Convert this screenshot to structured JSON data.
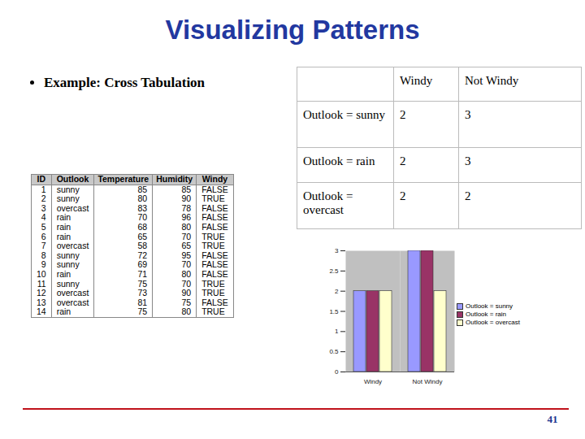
{
  "header": {
    "title": "Visualizing Patterns"
  },
  "bullet": "Example: Cross Tabulation",
  "data_table": {
    "columns": [
      "ID",
      "Outlook",
      "Temperature",
      "Humidity",
      "Windy"
    ],
    "rows": [
      [
        1,
        "sunny",
        85,
        85,
        "FALSE"
      ],
      [
        2,
        "sunny",
        80,
        90,
        "TRUE"
      ],
      [
        3,
        "overcast",
        83,
        78,
        "FALSE"
      ],
      [
        4,
        "rain",
        70,
        96,
        "FALSE"
      ],
      [
        5,
        "rain",
        68,
        80,
        "FALSE"
      ],
      [
        6,
        "rain",
        65,
        70,
        "TRUE"
      ],
      [
        7,
        "overcast",
        58,
        65,
        "TRUE"
      ],
      [
        8,
        "sunny",
        72,
        95,
        "FALSE"
      ],
      [
        9,
        "sunny",
        69,
        70,
        "FALSE"
      ],
      [
        10,
        "rain",
        71,
        80,
        "FALSE"
      ],
      [
        11,
        "sunny",
        75,
        70,
        "TRUE"
      ],
      [
        12,
        "overcast",
        73,
        90,
        "TRUE"
      ],
      [
        13,
        "overcast",
        81,
        75,
        "FALSE"
      ],
      [
        14,
        "rain",
        75,
        80,
        "TRUE"
      ]
    ]
  },
  "cross_table": {
    "columns": [
      null,
      "Windy",
      "Not Windy"
    ],
    "rows": [
      [
        "Outlook = sunny",
        2,
        3
      ],
      [
        "Outlook = rain",
        2,
        3
      ],
      [
        "Outlook = overcast",
        2,
        2
      ]
    ]
  },
  "chart_data": {
    "type": "bar",
    "categories": [
      "Windy",
      "Not Windy"
    ],
    "series": [
      {
        "name": "Outlook = sunny",
        "color": "#9999ff",
        "values": [
          2,
          3
        ]
      },
      {
        "name": "Outlook = rain",
        "color": "#993366",
        "values": [
          2,
          3
        ]
      },
      {
        "name": "Outlook = overcast",
        "color": "#ffffcc",
        "values": [
          2,
          2
        ]
      }
    ],
    "ylim": [
      0,
      3
    ],
    "yticks": [
      0,
      0.5,
      1,
      1.5,
      2,
      2.5,
      3
    ],
    "legend": "right"
  },
  "page_number": 41
}
